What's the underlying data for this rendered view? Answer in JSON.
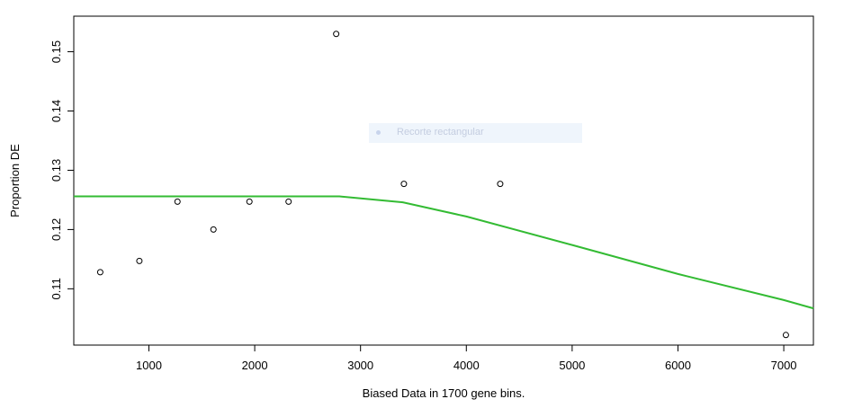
{
  "chart_data": {
    "type": "scatter",
    "xlabel": "Biased Data in 1700 gene bins.",
    "ylabel": "Proportion DE",
    "xlim": [
      290,
      7280
    ],
    "ylim": [
      0.1005,
      0.156
    ],
    "x_ticks": [
      1000,
      2000,
      3000,
      4000,
      5000,
      6000,
      7000
    ],
    "y_ticks": [
      0.11,
      0.12,
      0.13,
      0.14,
      0.15
    ],
    "y_tick_labels": [
      "0.11",
      "0.12",
      "0.13",
      "0.14",
      "0.15"
    ],
    "grid": false,
    "points": [
      {
        "x": 540,
        "y": 0.1128
      },
      {
        "x": 910,
        "y": 0.1147
      },
      {
        "x": 1270,
        "y": 0.1247
      },
      {
        "x": 1610,
        "y": 0.12
      },
      {
        "x": 1950,
        "y": 0.1247
      },
      {
        "x": 2320,
        "y": 0.1247
      },
      {
        "x": 2770,
        "y": 0.153
      },
      {
        "x": 3410,
        "y": 0.1277
      },
      {
        "x": 4320,
        "y": 0.1277
      },
      {
        "x": 7020,
        "y": 0.1022
      }
    ],
    "fit_line": {
      "color": "#33bb33",
      "points": [
        {
          "x": 290,
          "y": 0.1256
        },
        {
          "x": 2800,
          "y": 0.1256
        },
        {
          "x": 3400,
          "y": 0.1246
        },
        {
          "x": 4000,
          "y": 0.1222
        },
        {
          "x": 5000,
          "y": 0.1174
        },
        {
          "x": 6000,
          "y": 0.1125
        },
        {
          "x": 7000,
          "y": 0.1081
        },
        {
          "x": 7280,
          "y": 0.1067
        }
      ]
    }
  },
  "overlay": {
    "label": "Recorte rectangular"
  }
}
